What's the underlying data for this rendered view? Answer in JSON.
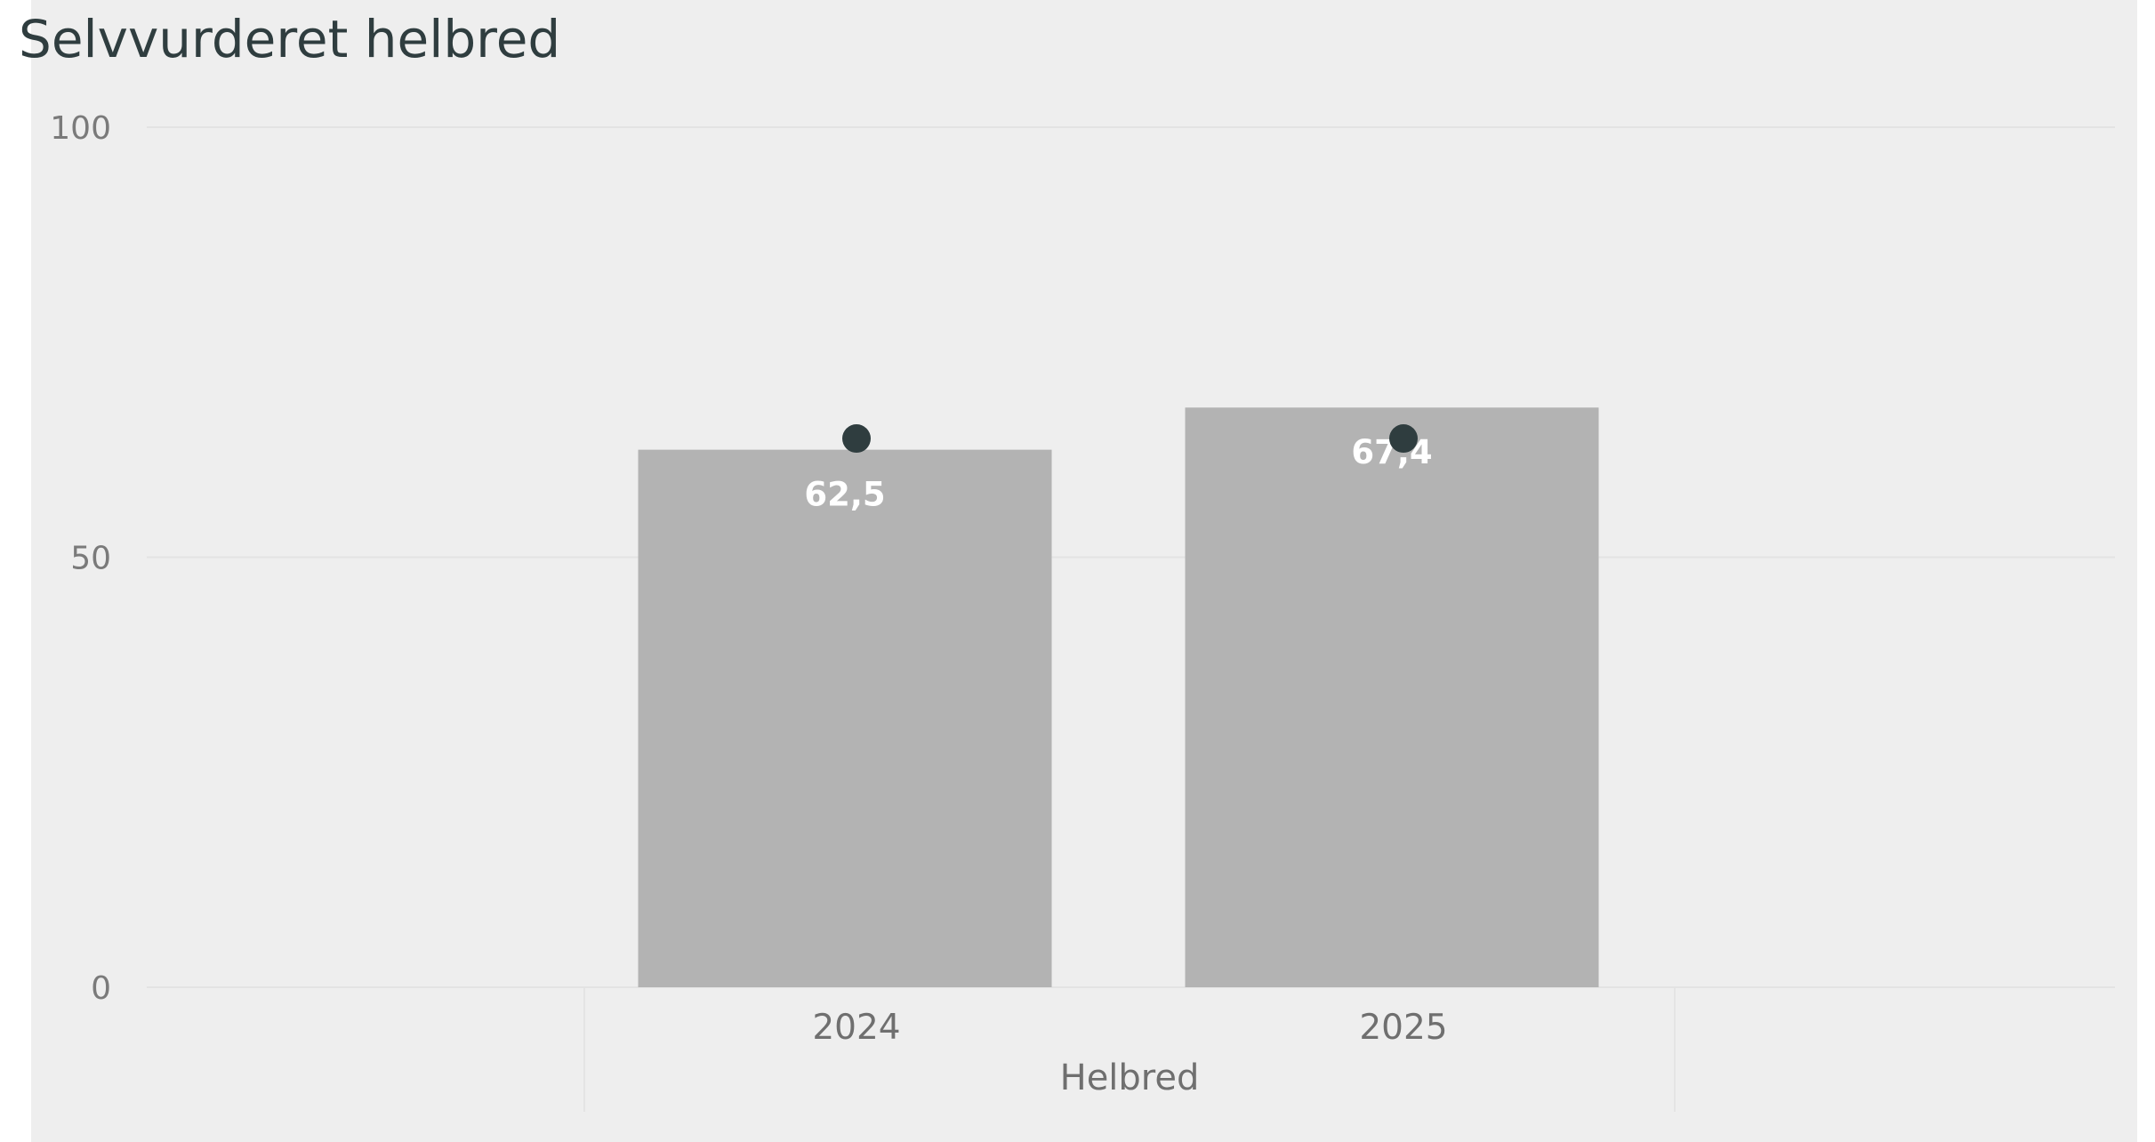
{
  "chart_data": {
    "type": "bar",
    "title": "Selvvurderet helbred",
    "xlabel": "Helbred",
    "ylabel": "",
    "ylim": [
      0,
      100
    ],
    "yticks": [
      "0",
      "50",
      "100"
    ],
    "categories": [
      "2024",
      "2025"
    ],
    "series": [
      {
        "type": "bar",
        "values": [
          62.5,
          67.4
        ],
        "data_labels": [
          "62,5",
          "67,4"
        ]
      },
      {
        "type": "marker",
        "values": [
          63.8,
          63.8
        ]
      }
    ],
    "grid": true,
    "legend": "none",
    "colors": {
      "background": "#eeeeee",
      "bar": "#b3b3b3",
      "marker": "#2f3d3f",
      "gridline": "#e3e3e3",
      "title": "#2f3d3f",
      "axis_text": "#7a7a7a",
      "data_label": "#ffffff"
    }
  }
}
